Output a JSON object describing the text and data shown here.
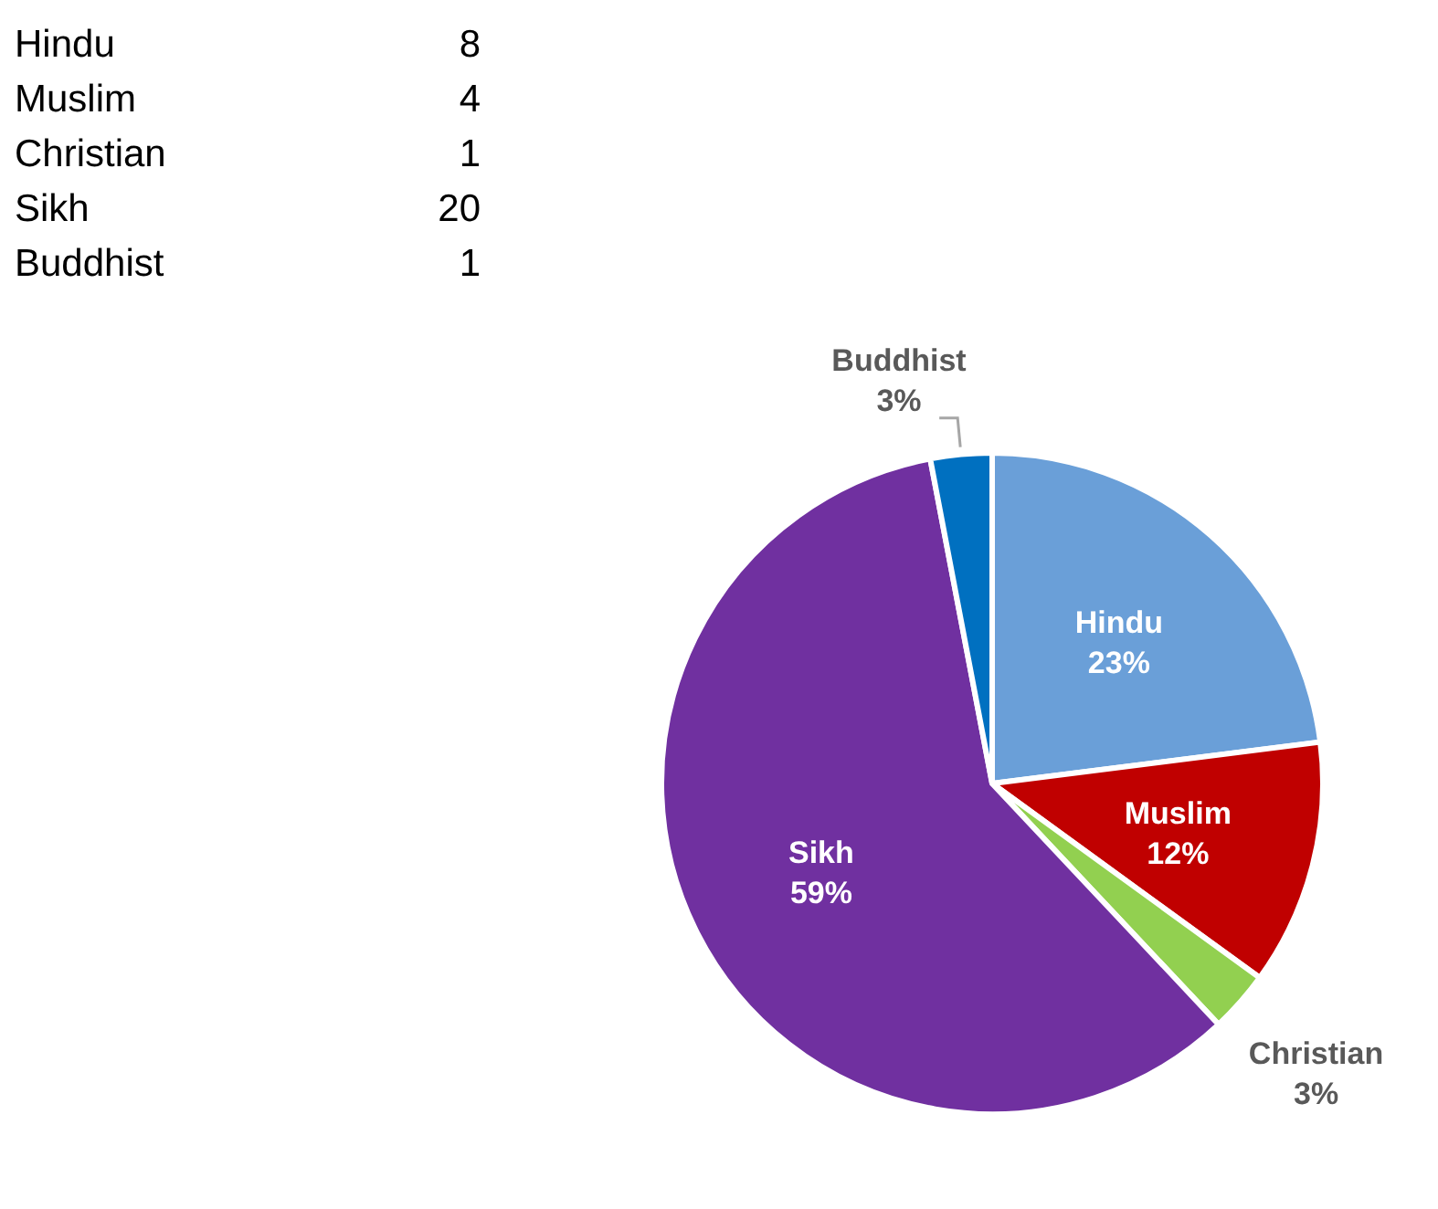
{
  "chart_data": [
    {
      "type": "other",
      "categories": [
        "Hindu",
        "Muslim",
        "Christian",
        "Sikh",
        "Buddhist"
      ],
      "values": [
        8,
        4,
        1,
        20,
        1
      ],
      "data_labels": true
    },
    {
      "type": "pie",
      "categories": [
        "Hindu",
        "Muslim",
        "Christian",
        "Sikh",
        "Buddhist"
      ],
      "values": [
        23,
        12,
        3,
        59,
        3
      ],
      "colors": [
        "#6a9fd8",
        "#c00000",
        "#92d050",
        "#7030a0",
        "#0070c0"
      ],
      "value_labels": [
        "23%",
        "12%",
        "3%",
        "59%",
        "3%"
      ]
    }
  ]
}
